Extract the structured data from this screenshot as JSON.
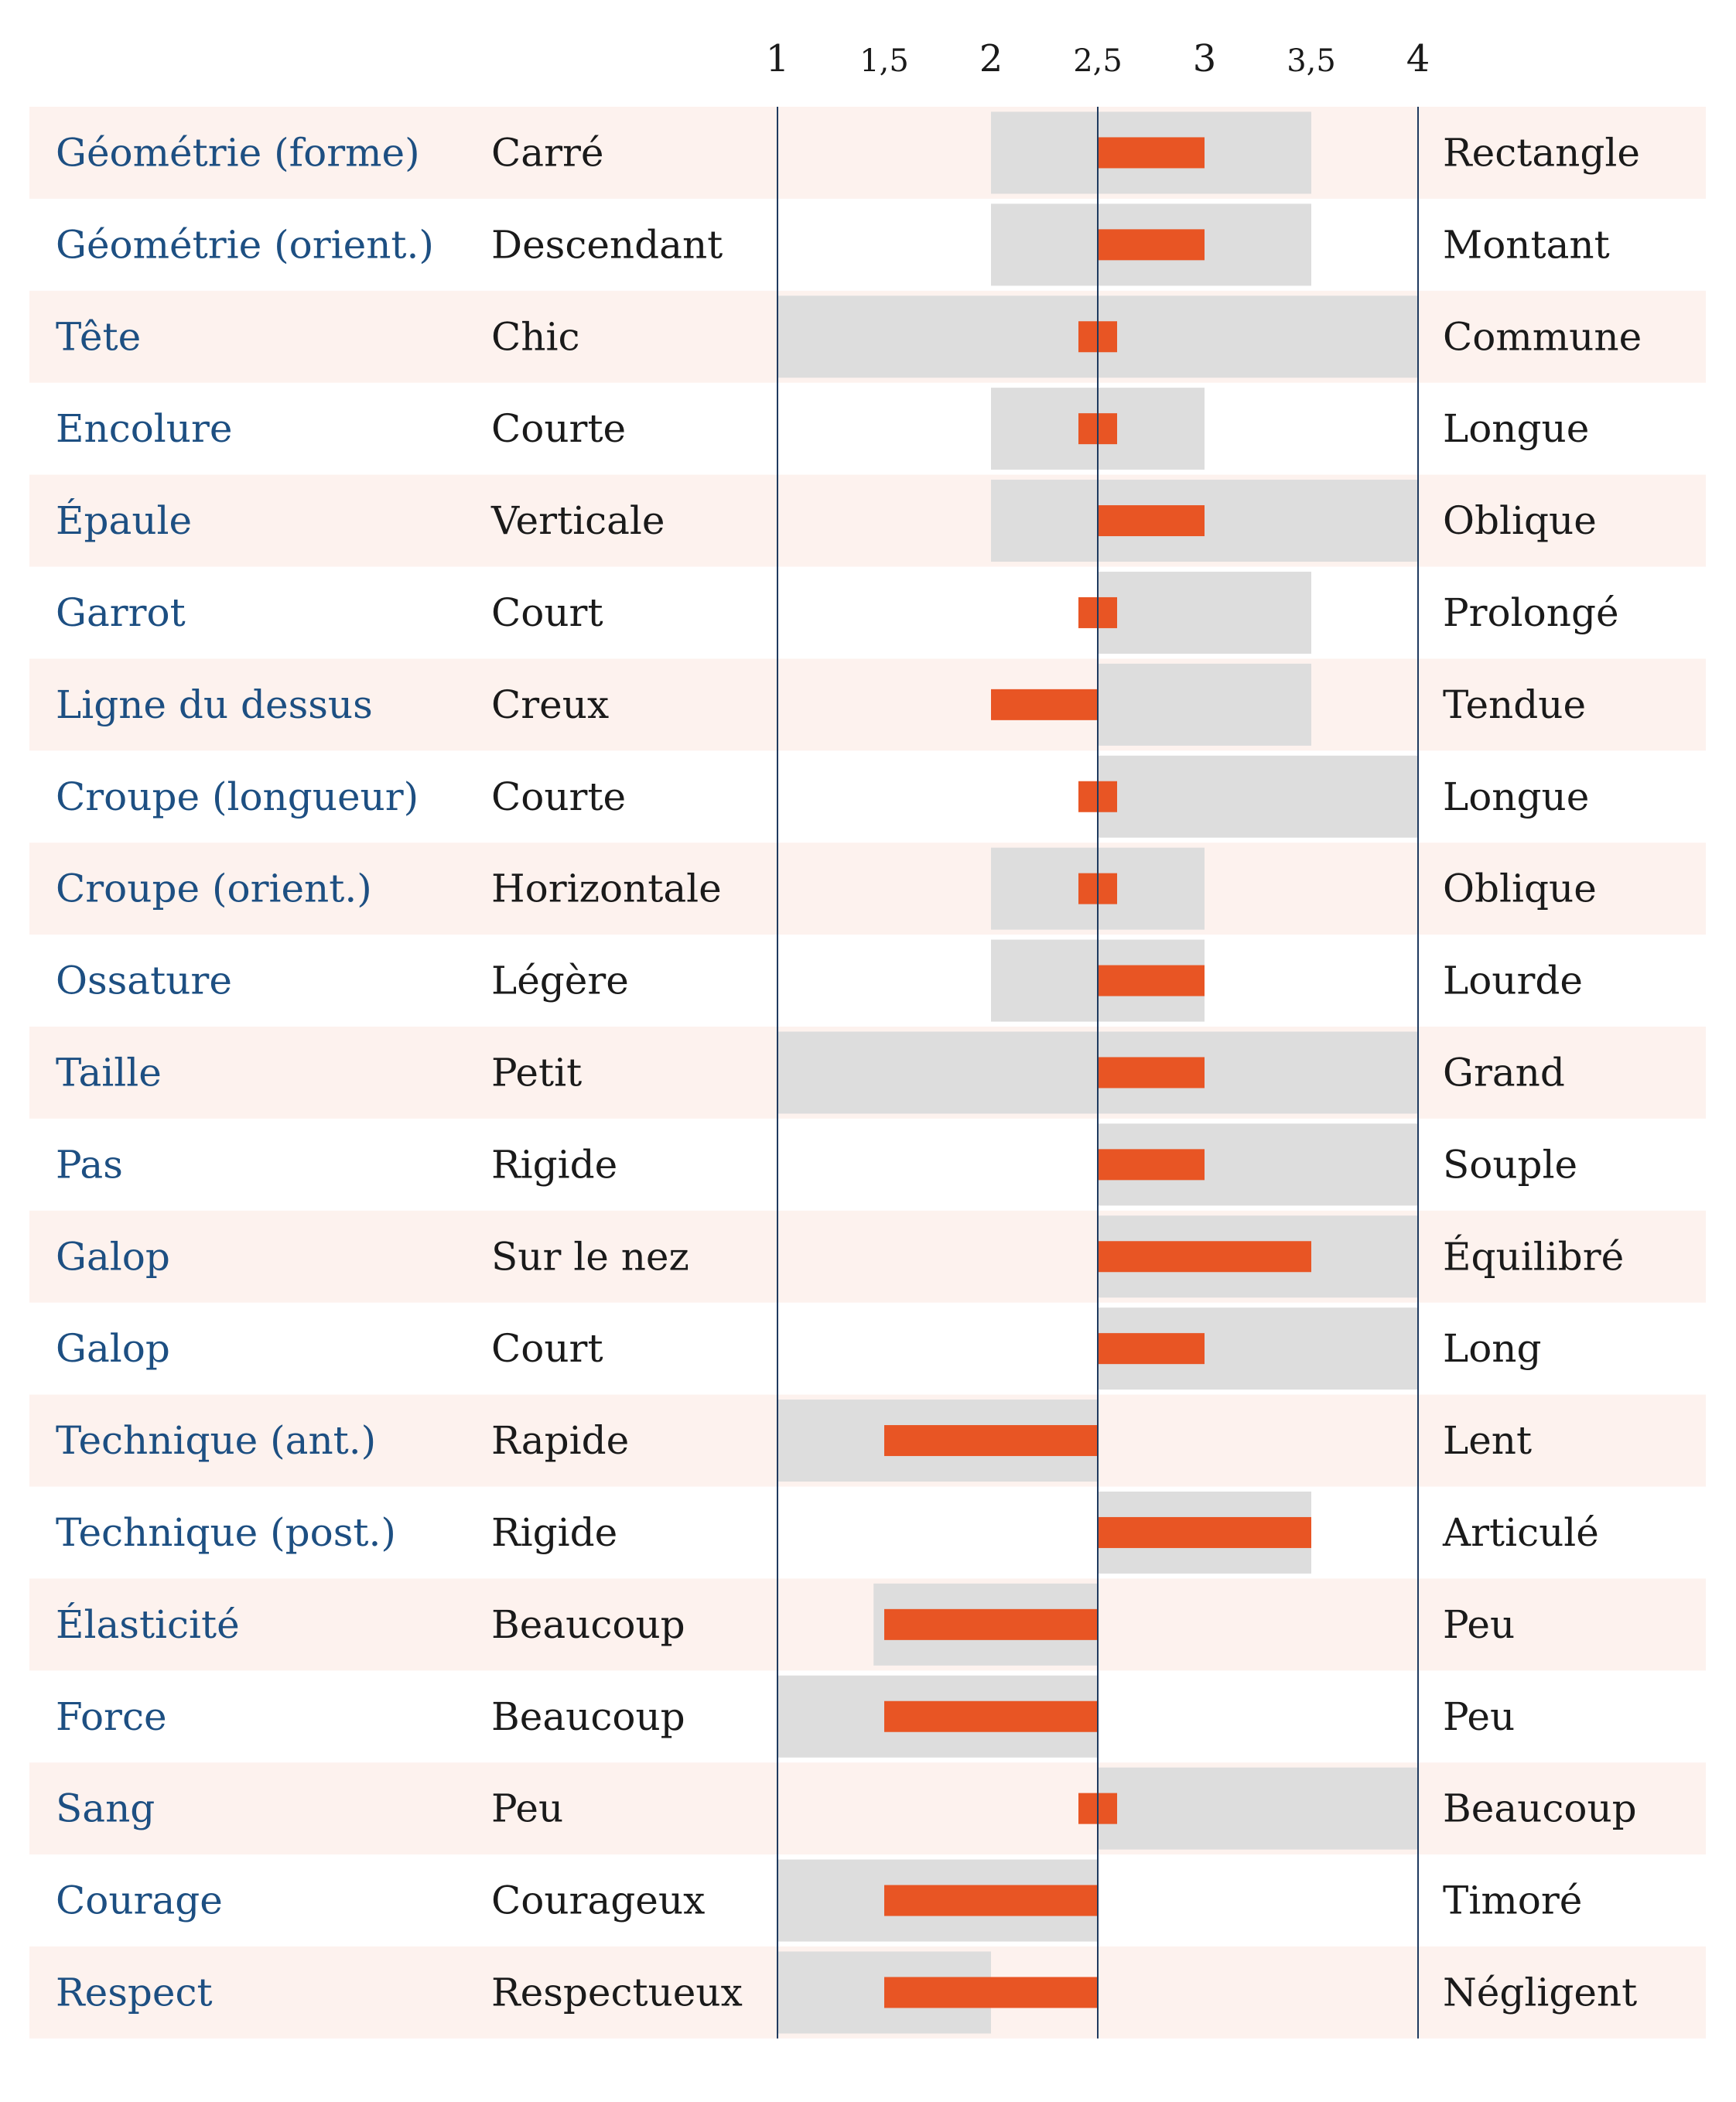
{
  "chart_data": {
    "type": "bar",
    "orientation": "horizontal",
    "center_value": 2.5,
    "xlim": [
      1,
      4
    ],
    "xticks": [
      {
        "value": 1,
        "label": "1"
      },
      {
        "value": 1.5,
        "label": "1,5"
      },
      {
        "value": 2,
        "label": "2"
      },
      {
        "value": 2.5,
        "label": "2,5"
      },
      {
        "value": 3,
        "label": "3"
      },
      {
        "value": 3.5,
        "label": "3,5"
      },
      {
        "value": 4,
        "label": "4"
      }
    ],
    "colors": {
      "bar": "#e85524",
      "range": "#dddddd",
      "row_stripe": "#fdf2ee",
      "trait_text": "#1d4f82",
      "axis_line": "#1f3a5f"
    },
    "rows": [
      {
        "trait": "Géométrie (forme)",
        "low": "Carré",
        "high": "Rectangle",
        "value": 3,
        "range": [
          2,
          3.5
        ]
      },
      {
        "trait": "Géométrie (orient.)",
        "low": "Descendant",
        "high": "Montant",
        "value": 3,
        "range": [
          2,
          3.5
        ]
      },
      {
        "trait": "Tête",
        "low": "Chic",
        "high": "Commune",
        "value": 2.5,
        "range": [
          1,
          4
        ]
      },
      {
        "trait": "Encolure",
        "low": "Courte",
        "high": "Longue",
        "value": 2.5,
        "range": [
          2,
          3
        ]
      },
      {
        "trait": "Épaule",
        "low": "Verticale",
        "high": "Oblique",
        "value": 3,
        "range": [
          2,
          4
        ]
      },
      {
        "trait": "Garrot",
        "low": "Court",
        "high": "Prolongé",
        "value": 2.5,
        "range": [
          2.5,
          3.5
        ]
      },
      {
        "trait": "Ligne du dessus",
        "low": "Creux",
        "high": "Tendue",
        "value": 2,
        "range": [
          2.5,
          3.5
        ]
      },
      {
        "trait": "Croupe (longueur)",
        "low": "Courte",
        "high": "Longue",
        "value": 2.5,
        "range": [
          2.5,
          4
        ]
      },
      {
        "trait": "Croupe (orient.)",
        "low": "Horizontale",
        "high": "Oblique",
        "value": 2.5,
        "range": [
          2,
          3
        ]
      },
      {
        "trait": "Ossature",
        "low": "Légère",
        "high": "Lourde",
        "value": 3,
        "range": [
          2,
          3
        ]
      },
      {
        "trait": "Taille",
        "low": "Petit",
        "high": "Grand",
        "value": 3,
        "range": [
          1,
          4
        ]
      },
      {
        "trait": "Pas",
        "low": "Rigide",
        "high": "Souple",
        "value": 3,
        "range": [
          2.5,
          4
        ]
      },
      {
        "trait": "Galop",
        "low": "Sur le nez",
        "high": "Équilibré",
        "value": 3.5,
        "range": [
          2.5,
          4
        ]
      },
      {
        "trait": "Galop",
        "low": "Court",
        "high": "Long",
        "value": 3,
        "range": [
          2.5,
          4
        ]
      },
      {
        "trait": "Technique (ant.)",
        "low": "Rapide",
        "high": "Lent",
        "value": 1.5,
        "range": [
          1,
          2.5
        ]
      },
      {
        "trait": "Technique (post.)",
        "low": "Rigide",
        "high": "Articulé",
        "value": 3.5,
        "range": [
          2.5,
          3.5
        ]
      },
      {
        "trait": "Élasticité",
        "low": "Beaucoup",
        "high": "Peu",
        "value": 1.5,
        "range": [
          1.45,
          2.5
        ]
      },
      {
        "trait": "Force",
        "low": "Beaucoup",
        "high": "Peu",
        "value": 1.5,
        "range": [
          1,
          2.5
        ]
      },
      {
        "trait": "Sang",
        "low": "Peu",
        "high": "Beaucoup",
        "value": 2.5,
        "range": [
          2.5,
          4
        ]
      },
      {
        "trait": "Courage",
        "low": "Courageux",
        "high": "Timoré",
        "value": 1.5,
        "range": [
          1,
          2.5
        ]
      },
      {
        "trait": "Respect",
        "low": "Respectueux",
        "high": "Négligent",
        "value": 1.5,
        "range": [
          1,
          2
        ]
      }
    ]
  }
}
